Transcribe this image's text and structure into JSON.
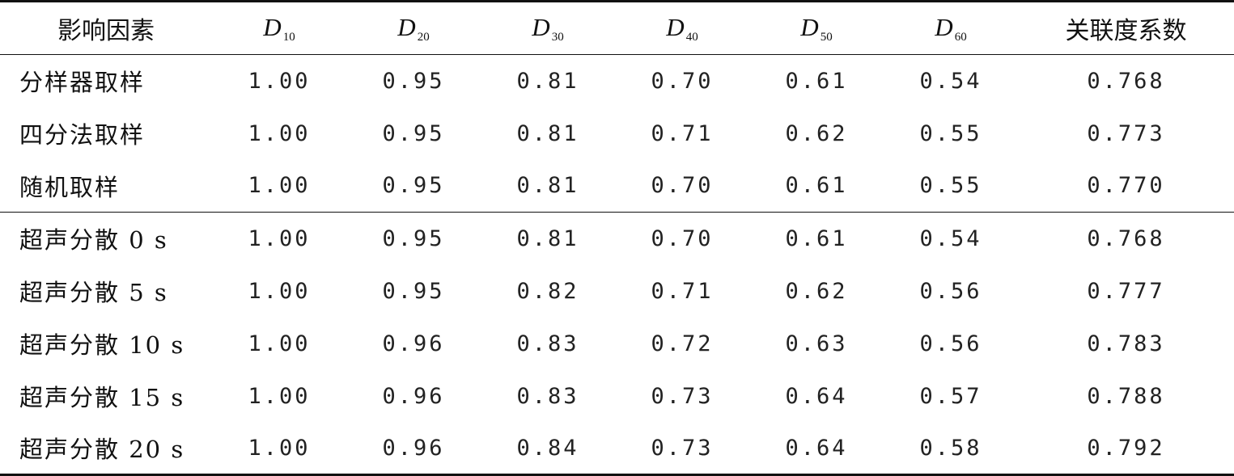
{
  "table": {
    "headers": {
      "factor": "影响因素",
      "d_columns": [
        {
          "base": "D",
          "sub": "10"
        },
        {
          "base": "D",
          "sub": "20"
        },
        {
          "base": "D",
          "sub": "30"
        },
        {
          "base": "D",
          "sub": "40"
        },
        {
          "base": "D",
          "sub": "50"
        },
        {
          "base": "D",
          "sub": "60"
        }
      ],
      "correlation": "关联度系数"
    },
    "rows": [
      {
        "factor": "分样器取样",
        "values": [
          "1.00",
          "0.95",
          "0.81",
          "0.70",
          "0.61",
          "0.54"
        ],
        "coef": "0.768"
      },
      {
        "factor": "四分法取样",
        "values": [
          "1.00",
          "0.95",
          "0.81",
          "0.71",
          "0.62",
          "0.55"
        ],
        "coef": "0.773"
      },
      {
        "factor": "随机取样",
        "values": [
          "1.00",
          "0.95",
          "0.81",
          "0.70",
          "0.61",
          "0.55"
        ],
        "coef": "0.770"
      },
      {
        "factor": "超声分散 0 s",
        "values": [
          "1.00",
          "0.95",
          "0.81",
          "0.70",
          "0.61",
          "0.54"
        ],
        "coef": "0.768"
      },
      {
        "factor": "超声分散 5 s",
        "values": [
          "1.00",
          "0.95",
          "0.82",
          "0.71",
          "0.62",
          "0.56"
        ],
        "coef": "0.777"
      },
      {
        "factor": "超声分散 10 s",
        "values": [
          "1.00",
          "0.96",
          "0.83",
          "0.72",
          "0.63",
          "0.56"
        ],
        "coef": "0.783"
      },
      {
        "factor": "超声分散 15 s",
        "values": [
          "1.00",
          "0.96",
          "0.83",
          "0.73",
          "0.64",
          "0.57"
        ],
        "coef": "0.788"
      },
      {
        "factor": "超声分散 20 s",
        "values": [
          "1.00",
          "0.96",
          "0.84",
          "0.73",
          "0.64",
          "0.58"
        ],
        "coef": "0.792"
      }
    ]
  }
}
